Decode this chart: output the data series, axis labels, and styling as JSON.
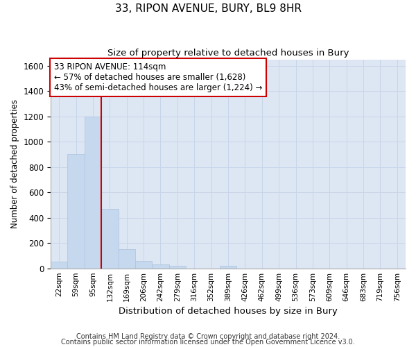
{
  "title": "33, RIPON AVENUE, BURY, BL9 8HR",
  "subtitle": "Size of property relative to detached houses in Bury",
  "xlabel": "Distribution of detached houses by size in Bury",
  "ylabel": "Number of detached properties",
  "footnote1": "Contains HM Land Registry data © Crown copyright and database right 2024.",
  "footnote2": "Contains public sector information licensed under the Open Government Licence v3.0.",
  "categories": [
    "22sqm",
    "59sqm",
    "95sqm",
    "132sqm",
    "169sqm",
    "206sqm",
    "242sqm",
    "279sqm",
    "316sqm",
    "352sqm",
    "389sqm",
    "426sqm",
    "462sqm",
    "499sqm",
    "536sqm",
    "573sqm",
    "609sqm",
    "646sqm",
    "683sqm",
    "719sqm",
    "756sqm"
  ],
  "values": [
    55,
    900,
    1200,
    470,
    150,
    60,
    30,
    20,
    0,
    0,
    20,
    0,
    0,
    0,
    0,
    0,
    0,
    0,
    0,
    0,
    0
  ],
  "bar_color": "#c5d8ee",
  "bar_edge_color": "#aac4e0",
  "grid_color": "#c8d4e8",
  "bg_color": "#dde6f3",
  "fig_bg_color": "#ffffff",
  "annotation_text": "33 RIPON AVENUE: 114sqm\n← 57% of detached houses are smaller (1,628)\n43% of semi-detached houses are larger (1,224) →",
  "annotation_box_facecolor": "#ffffff",
  "annotation_box_edgecolor": "#cc0000",
  "vline_x": 2.5,
  "vline_color": "#cc0000",
  "ylim": [
    0,
    1650
  ],
  "yticks": [
    0,
    200,
    400,
    600,
    800,
    1000,
    1200,
    1400,
    1600
  ]
}
